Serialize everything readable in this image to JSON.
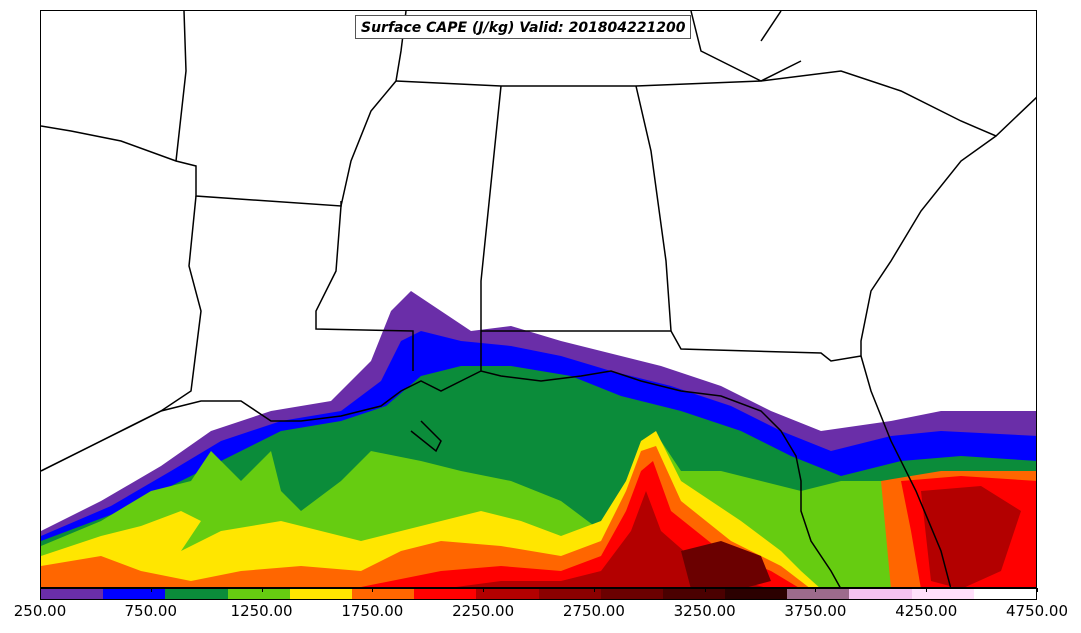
{
  "title": "Surface CAPE (J/kg) Valid: 201804221200",
  "colorbar": {
    "colors": [
      "#6a2ea8",
      "#0000ff",
      "#0b8c3a",
      "#66cc11",
      "#ffe600",
      "#ff6600",
      "#ff0000",
      "#b30000",
      "#8b0000",
      "#6b0000",
      "#4a0000",
      "#2b0000",
      "#9c6b8c",
      "#f5c3f0",
      "#ffe0fb",
      "#ffffff"
    ],
    "tick_labels": [
      "250.00",
      "750.00",
      "1250.00",
      "1750.00",
      "2250.00",
      "2750.00",
      "3250.00",
      "3750.00",
      "4250.00",
      "4750.00"
    ],
    "range": [
      250,
      4750
    ]
  }
}
